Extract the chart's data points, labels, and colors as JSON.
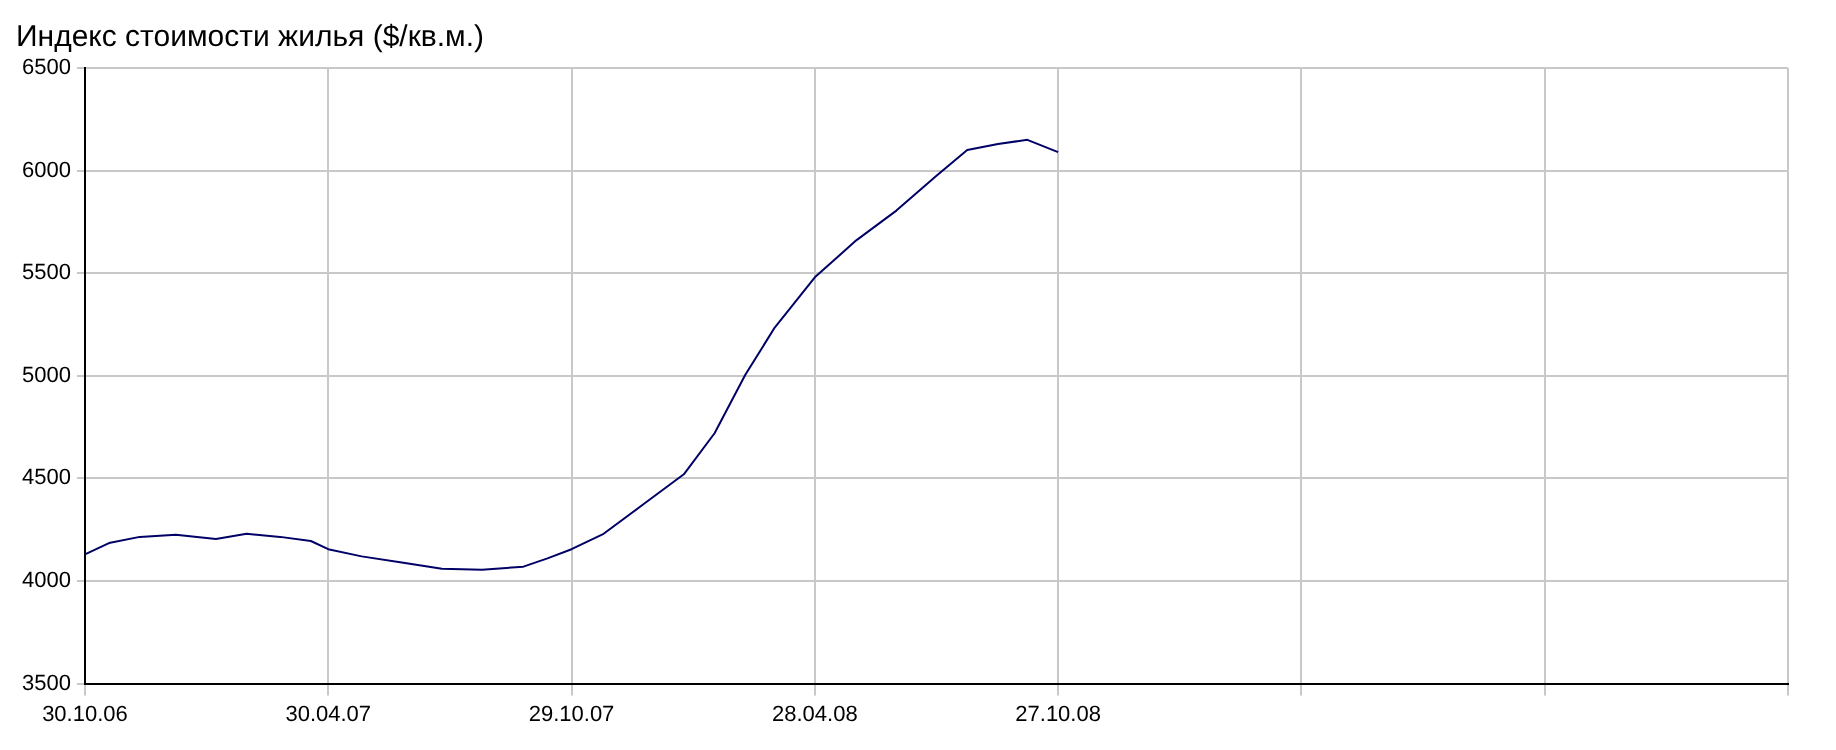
{
  "chart_data": {
    "type": "line",
    "title": "Индекс стоимости жилья ($/кв.м.)",
    "x": [
      "2006-10-30",
      "2006-11-17",
      "2006-12-10",
      "2007-01-06",
      "2007-02-05",
      "2007-02-28",
      "2007-03-25",
      "2007-04-17",
      "2007-04-30",
      "2007-05-25",
      "2007-06-24",
      "2007-07-24",
      "2007-08-23",
      "2007-09-23",
      "2007-10-11",
      "2007-10-29",
      "2007-11-22",
      "2007-12-22",
      "2008-01-21",
      "2008-02-13",
      "2008-03-07",
      "2008-03-29",
      "2008-04-28",
      "2008-05-29",
      "2008-06-28",
      "2008-07-28",
      "2008-08-20",
      "2008-09-12",
      "2008-10-04",
      "2008-10-27"
    ],
    "series": [
      {
        "color": "#000066",
        "values": [
          4130,
          4185,
          4215,
          4225,
          4205,
          4230,
          4215,
          4195,
          4155,
          4120,
          4090,
          4060,
          4055,
          4070,
          4110,
          4155,
          4230,
          4375,
          4520,
          4720,
          5005,
          5235,
          5480,
          5660,
          5805,
          5975,
          6100,
          6130,
          6150,
          6090
        ]
      }
    ],
    "xlim": [
      "2006-10-30",
      "2010-04-26"
    ],
    "xticks": [
      {
        "value": "2006-10-30",
        "label": "30.10.06"
      },
      {
        "value": "2007-04-30",
        "label": "30.04.07"
      },
      {
        "value": "2007-10-29",
        "label": "29.10.07"
      },
      {
        "value": "2008-04-28",
        "label": "28.04.08"
      },
      {
        "value": "2008-10-27",
        "label": "27.10.08"
      },
      {
        "value": "2009-04-27",
        "label": null
      },
      {
        "value": "2009-10-26",
        "label": null
      },
      {
        "value": "2010-04-26",
        "label": null
      }
    ],
    "ylim": [
      3500,
      6500
    ],
    "yticks": [
      3500,
      4000,
      4500,
      5000,
      5500,
      6000,
      6500
    ],
    "grid": true,
    "marker": "none",
    "line_style": "solid",
    "legend": false
  }
}
